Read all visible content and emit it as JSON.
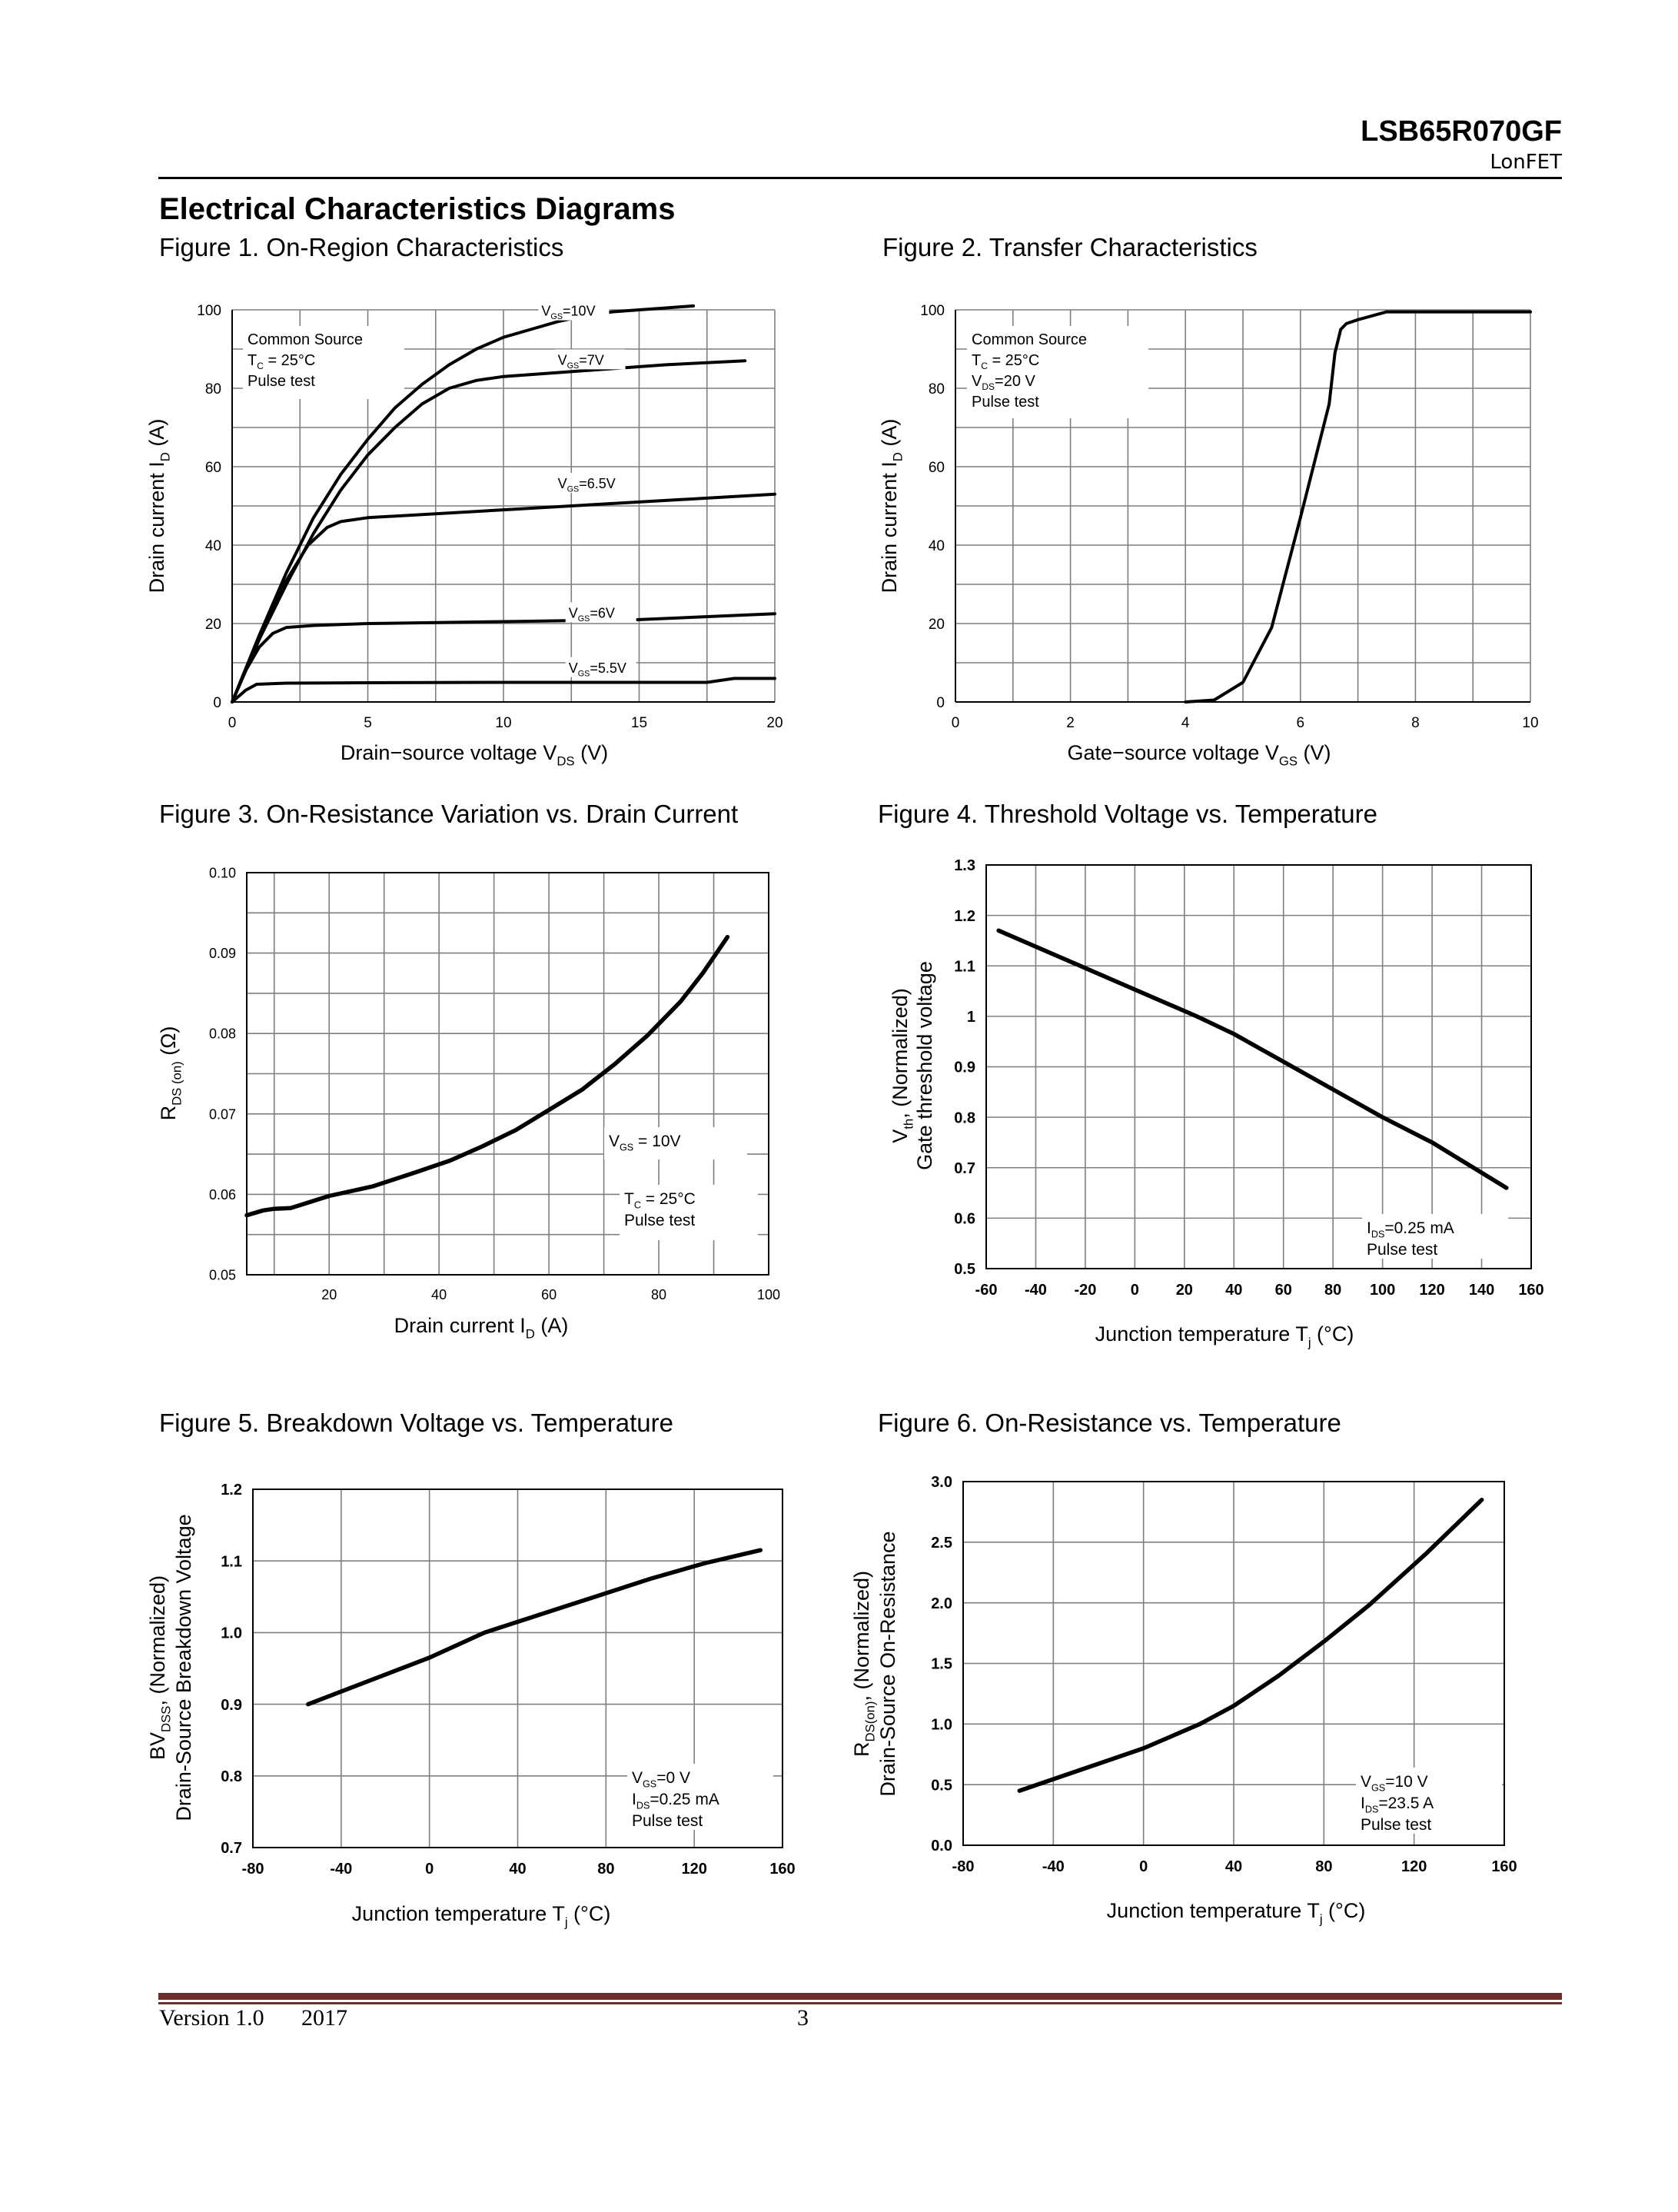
{
  "header": {
    "part_number": "LSB65R070GF",
    "brand": "LonFET"
  },
  "section_title": "Electrical Characteristics Diagrams",
  "footer": {
    "version": "Version 1.0",
    "year": "2017",
    "page": "3"
  },
  "colors": {
    "curve": "#000000",
    "grid": "#7f7f7f",
    "footer_rule": "#6e2d2d"
  },
  "chart_data": [
    {
      "id": "fig1",
      "type": "line",
      "title": "Figure 1. On-Region Characteristics",
      "xlabel": "Drain−source voltage V",
      "xlabel_sub": "DS",
      "xlabel_unit": " (V)",
      "ylabel": "Drain current I",
      "ylabel_sub": "D",
      "ylabel_unit": " (A)",
      "xlim": [
        0,
        20
      ],
      "ylim": [
        0,
        100
      ],
      "xticks": [
        0,
        5,
        10,
        15,
        20
      ],
      "yticks": [
        0,
        20,
        40,
        60,
        80,
        100
      ],
      "xgrid": [
        0,
        2.5,
        5,
        7.5,
        10,
        12.5,
        15,
        17.5,
        20
      ],
      "ygrid": [
        0,
        10,
        20,
        30,
        40,
        50,
        60,
        70,
        80,
        90,
        100
      ],
      "annotation": [
        "Common Source",
        "T_C = 25°C",
        "Pulse test"
      ],
      "series": [
        {
          "name": "V_GS=10V",
          "label": "10V",
          "x": [
            0,
            1,
            2,
            3,
            4,
            5,
            6,
            7,
            8,
            9,
            10,
            11,
            12,
            13,
            14,
            15,
            16,
            17
          ],
          "y": [
            0,
            17,
            33,
            47,
            58,
            67,
            75,
            81,
            86,
            90,
            93,
            95,
            97,
            98.5,
            99.5,
            100,
            100.5,
            101
          ]
        },
        {
          "name": "V_GS=7V",
          "label": "7V",
          "x": [
            0,
            1,
            2,
            3,
            4,
            5,
            6,
            7,
            8,
            9,
            10,
            12,
            14,
            16,
            18.9
          ],
          "y": [
            0,
            16,
            30,
            43,
            54,
            63,
            70,
            76,
            80,
            82,
            83,
            84,
            85,
            86,
            87
          ]
        },
        {
          "name": "V_GS=6.5V",
          "label": "6.5V",
          "x": [
            0,
            1,
            2,
            2.8,
            3.5,
            4,
            5,
            10,
            15,
            20
          ],
          "y": [
            0,
            16,
            31,
            40,
            44.5,
            46,
            47,
            49,
            51,
            53
          ]
        },
        {
          "name": "V_GS=6V",
          "label": "6V",
          "x": [
            0,
            0.5,
            1,
            1.5,
            2,
            3,
            5,
            10,
            15,
            20
          ],
          "y": [
            0,
            8,
            14,
            17.5,
            19,
            19.5,
            20,
            20.5,
            21,
            22.5
          ]
        },
        {
          "name": "V_GS=5.5V",
          "label": "5.5V",
          "x": [
            0,
            0.5,
            0.9,
            2,
            5,
            10,
            15,
            17.5,
            18.5,
            20
          ],
          "y": [
            0,
            3,
            4.5,
            4.8,
            4.9,
            5,
            5,
            5,
            6,
            6
          ]
        }
      ]
    },
    {
      "id": "fig2",
      "type": "line",
      "title": "Figure 2. Transfer Characteristics",
      "xlabel": "Gate−source voltage V",
      "xlabel_sub": "GS",
      "xlabel_unit": " (V)",
      "ylabel": "Drain current I",
      "ylabel_sub": "D",
      "ylabel_unit": " (A)",
      "xlim": [
        0,
        10
      ],
      "ylim": [
        0,
        100
      ],
      "xticks": [
        0,
        2,
        4,
        6,
        8,
        10
      ],
      "yticks": [
        0,
        20,
        40,
        60,
        80,
        100
      ],
      "xgrid": [
        0,
        1,
        2,
        3,
        4,
        5,
        6,
        7,
        8,
        9,
        10
      ],
      "ygrid": [
        0,
        10,
        20,
        30,
        40,
        50,
        60,
        70,
        80,
        90,
        100
      ],
      "annotation": [
        "Common Source",
        "T_C = 25°C",
        "V_DS=20 V",
        "Pulse test"
      ],
      "series": [
        {
          "name": "I_D",
          "x": [
            4,
            4.5,
            5,
            5.5,
            6,
            6.5,
            6.6,
            6.7,
            6.8,
            7,
            7.5,
            8,
            9,
            10
          ],
          "y": [
            0,
            0.5,
            5,
            19,
            47,
            76,
            89,
            95,
            96.5,
            97.5,
            99.5,
            99.5,
            99.5,
            99.5
          ]
        }
      ]
    },
    {
      "id": "fig3",
      "type": "line",
      "title": "Figure 3. On-Resistance Variation vs. Drain Current",
      "xlabel": "Drain current I",
      "xlabel_sub": "D",
      "xlabel_unit": " (A)",
      "ylabel": "R",
      "ylabel_sub": "DS (on)",
      "ylabel_unit": " (Ω)",
      "xlim": [
        5,
        100
      ],
      "ylim": [
        0.05,
        0.1
      ],
      "xticks": [
        20,
        40,
        60,
        80,
        100
      ],
      "yticks": [
        0.05,
        0.06,
        0.07,
        0.08,
        0.09,
        0.1
      ],
      "ytick_labels": [
        "0.05",
        "0.06",
        "0.07",
        "0.08",
        "0.09",
        "0.10"
      ],
      "xgrid": [
        5,
        10,
        20,
        30,
        40,
        50,
        60,
        70,
        80,
        90,
        100
      ],
      "ygrid": [
        0.05,
        0.055,
        0.06,
        0.065,
        0.07,
        0.075,
        0.08,
        0.085,
        0.09,
        0.095,
        0.1
      ],
      "annotation": [
        "V_GS = 10V"
      ],
      "annotation2": [
        "T_C = 25°C",
        "Pulse test"
      ],
      "series": [
        {
          "name": "R_DS(on)",
          "x": [
            5,
            8,
            10,
            13,
            20,
            28,
            36,
            42,
            48,
            54,
            60,
            66,
            72,
            78,
            84,
            88,
            91,
            92.5
          ],
          "y": [
            0.0574,
            0.058,
            0.0582,
            0.0583,
            0.0598,
            0.061,
            0.0628,
            0.0642,
            0.066,
            0.068,
            0.0705,
            0.073,
            0.0762,
            0.0798,
            0.084,
            0.0875,
            0.0905,
            0.092
          ]
        }
      ]
    },
    {
      "id": "fig4",
      "type": "line",
      "title": "Figure 4. Threshold Voltage vs. Temperature",
      "xlabel": "Junction temperature T",
      "xlabel_sub": "j",
      "xlabel_unit": " (°C)",
      "ylabel": "V",
      "ylabel_sub": "th",
      "ylabel_unit": ", (Normalized)",
      "ylabel2": "Gate threshold voltage",
      "xlim": [
        -60,
        160
      ],
      "ylim": [
        0.5,
        1.3
      ],
      "xticks": [
        -60,
        -40,
        -20,
        0,
        20,
        40,
        60,
        80,
        100,
        120,
        140,
        160
      ],
      "yticks": [
        0.5,
        0.6,
        0.7,
        0.8,
        0.9,
        1,
        1.1,
        1.2,
        1.3
      ],
      "ytick_labels": [
        "0.5",
        "0.6",
        "0.7",
        "0.8",
        "0.9",
        "1",
        "1.1",
        "1.2",
        "1.3"
      ],
      "xgrid": [
        -60,
        -40,
        -20,
        0,
        20,
        40,
        60,
        80,
        100,
        120,
        140,
        160
      ],
      "ygrid": [
        0.5,
        0.6,
        0.7,
        0.8,
        0.9,
        1,
        1.1,
        1.2,
        1.3
      ],
      "annotation": [
        "I_DS=0.25 mA",
        "Pulse test"
      ],
      "series": [
        {
          "name": "V_th",
          "x": [
            -55,
            25,
            40,
            60,
            80,
            100,
            120,
            150
          ],
          "y": [
            1.17,
            1.0,
            0.965,
            0.91,
            0.855,
            0.8,
            0.75,
            0.66
          ]
        }
      ]
    },
    {
      "id": "fig5",
      "type": "line",
      "title": "Figure 5. Breakdown Voltage vs. Temperature",
      "xlabel": "Junction temperature T",
      "xlabel_sub": "j",
      "xlabel_unit": " (°C)",
      "ylabel": "BV",
      "ylabel_sub": "DSS",
      "ylabel_unit": ", (Normalized)",
      "ylabel2": "Drain-Source Breakdown Voltage",
      "xlim": [
        -80,
        160
      ],
      "ylim": [
        0.7,
        1.2
      ],
      "xticks": [
        -80,
        -40,
        0,
        40,
        80,
        120,
        160
      ],
      "yticks": [
        0.7,
        0.8,
        0.9,
        1.0,
        1.1,
        1.2
      ],
      "ytick_labels": [
        "0.7",
        "0.8",
        "0.9",
        "1.0",
        "1.1",
        "1.2"
      ],
      "xgrid": [
        -80,
        -40,
        0,
        40,
        80,
        120,
        160
      ],
      "ygrid": [
        0.7,
        0.8,
        0.9,
        1.0,
        1.1,
        1.2
      ],
      "annotation": [
        "V_GS=0 V",
        "I_DS=0.25 mA",
        "Pulse test"
      ],
      "series": [
        {
          "name": "BV_DSS",
          "x": [
            -55,
            0,
            25,
            60,
            100,
            125,
            150
          ],
          "y": [
            0.9,
            0.965,
            1.0,
            1.035,
            1.075,
            1.097,
            1.115
          ]
        }
      ]
    },
    {
      "id": "fig6",
      "type": "line",
      "title": "Figure 6. On-Resistance vs. Temperature",
      "xlabel": "Junction temperature T",
      "xlabel_sub": "j",
      "xlabel_unit": " (°C)",
      "ylabel": "R",
      "ylabel_sub": "DS(on)",
      "ylabel_unit": ", (Normalized)",
      "ylabel2": "Drain-Source On-Resistance",
      "xlim": [
        -80,
        160
      ],
      "ylim": [
        0,
        3
      ],
      "xticks": [
        -80,
        -40,
        0,
        40,
        80,
        120,
        160
      ],
      "yticks": [
        0,
        0.5,
        1,
        1.5,
        2,
        2.5,
        3
      ],
      "ytick_labels": [
        "0.0",
        "0.5",
        "1.0",
        "1.5",
        "2.0",
        "2.5",
        "3.0"
      ],
      "xgrid": [
        -80,
        -40,
        0,
        40,
        80,
        120,
        160
      ],
      "ygrid": [
        0,
        0.5,
        1,
        1.5,
        2,
        2.5,
        3
      ],
      "annotation": [
        "V_GS=10 V",
        "I_DS=23.5 A",
        "Pulse test"
      ],
      "series": [
        {
          "name": "R_DS(on)",
          "x": [
            -55,
            0,
            25,
            40,
            60,
            80,
            100,
            125,
            150
          ],
          "y": [
            0.45,
            0.8,
            1.0,
            1.15,
            1.4,
            1.68,
            1.98,
            2.4,
            2.85
          ]
        }
      ]
    }
  ]
}
